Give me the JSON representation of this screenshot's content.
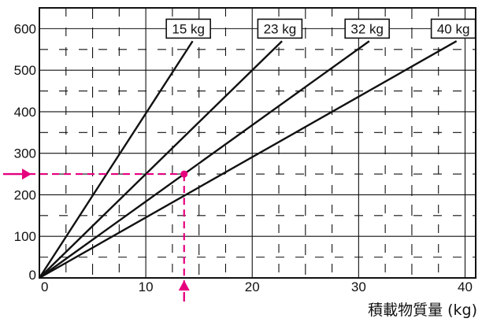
{
  "chart_data": {
    "type": "line",
    "title": "",
    "xlabel": "積載物質量 (kg)",
    "ylabel": "",
    "xlim": [
      0,
      41
    ],
    "ylim": [
      0,
      650
    ],
    "x_ticks": [
      {
        "value": 0,
        "label": "0"
      },
      {
        "value": 10,
        "label": "10"
      },
      {
        "value": 20,
        "label": "20"
      },
      {
        "value": 30,
        "label": "30"
      },
      {
        "value": 40,
        "label": "40"
      }
    ],
    "y_ticks": [
      {
        "value": 0,
        "label": "0"
      },
      {
        "value": 100,
        "label": "100"
      },
      {
        "value": 200,
        "label": "200"
      },
      {
        "value": 300,
        "label": "300"
      },
      {
        "value": 400,
        "label": "400"
      },
      {
        "value": 500,
        "label": "500"
      },
      {
        "value": 600,
        "label": "600"
      }
    ],
    "grid": true,
    "minor_grid": true,
    "legend": "none",
    "series": [
      {
        "name": "15 kg",
        "x": [
          0,
          14.4
        ],
        "y": [
          0,
          570
        ]
      },
      {
        "name": "23 kg",
        "x": [
          0,
          22.8
        ],
        "y": [
          0,
          570
        ]
      },
      {
        "name": "32 kg",
        "x": [
          0,
          31.0
        ],
        "y": [
          0,
          570
        ]
      },
      {
        "name": "40 kg",
        "x": [
          0,
          39.2
        ],
        "y": [
          0,
          570
        ]
      }
    ],
    "label_positions": [
      {
        "series": "15 kg",
        "x": 14.0,
        "y": 600
      },
      {
        "series": "23 kg",
        "x": 22.6,
        "y": 600
      },
      {
        "series": "32 kg",
        "x": 30.8,
        "y": 600
      },
      {
        "series": "40 kg",
        "x": 38.9,
        "y": 600
      }
    ],
    "annotations": [
      {
        "type": "reading",
        "x": 13.6,
        "y": 250,
        "color": "#e6007e"
      }
    ],
    "colors": {
      "line": "#111111",
      "grid": "#111111",
      "highlight": "#e6007e"
    }
  }
}
